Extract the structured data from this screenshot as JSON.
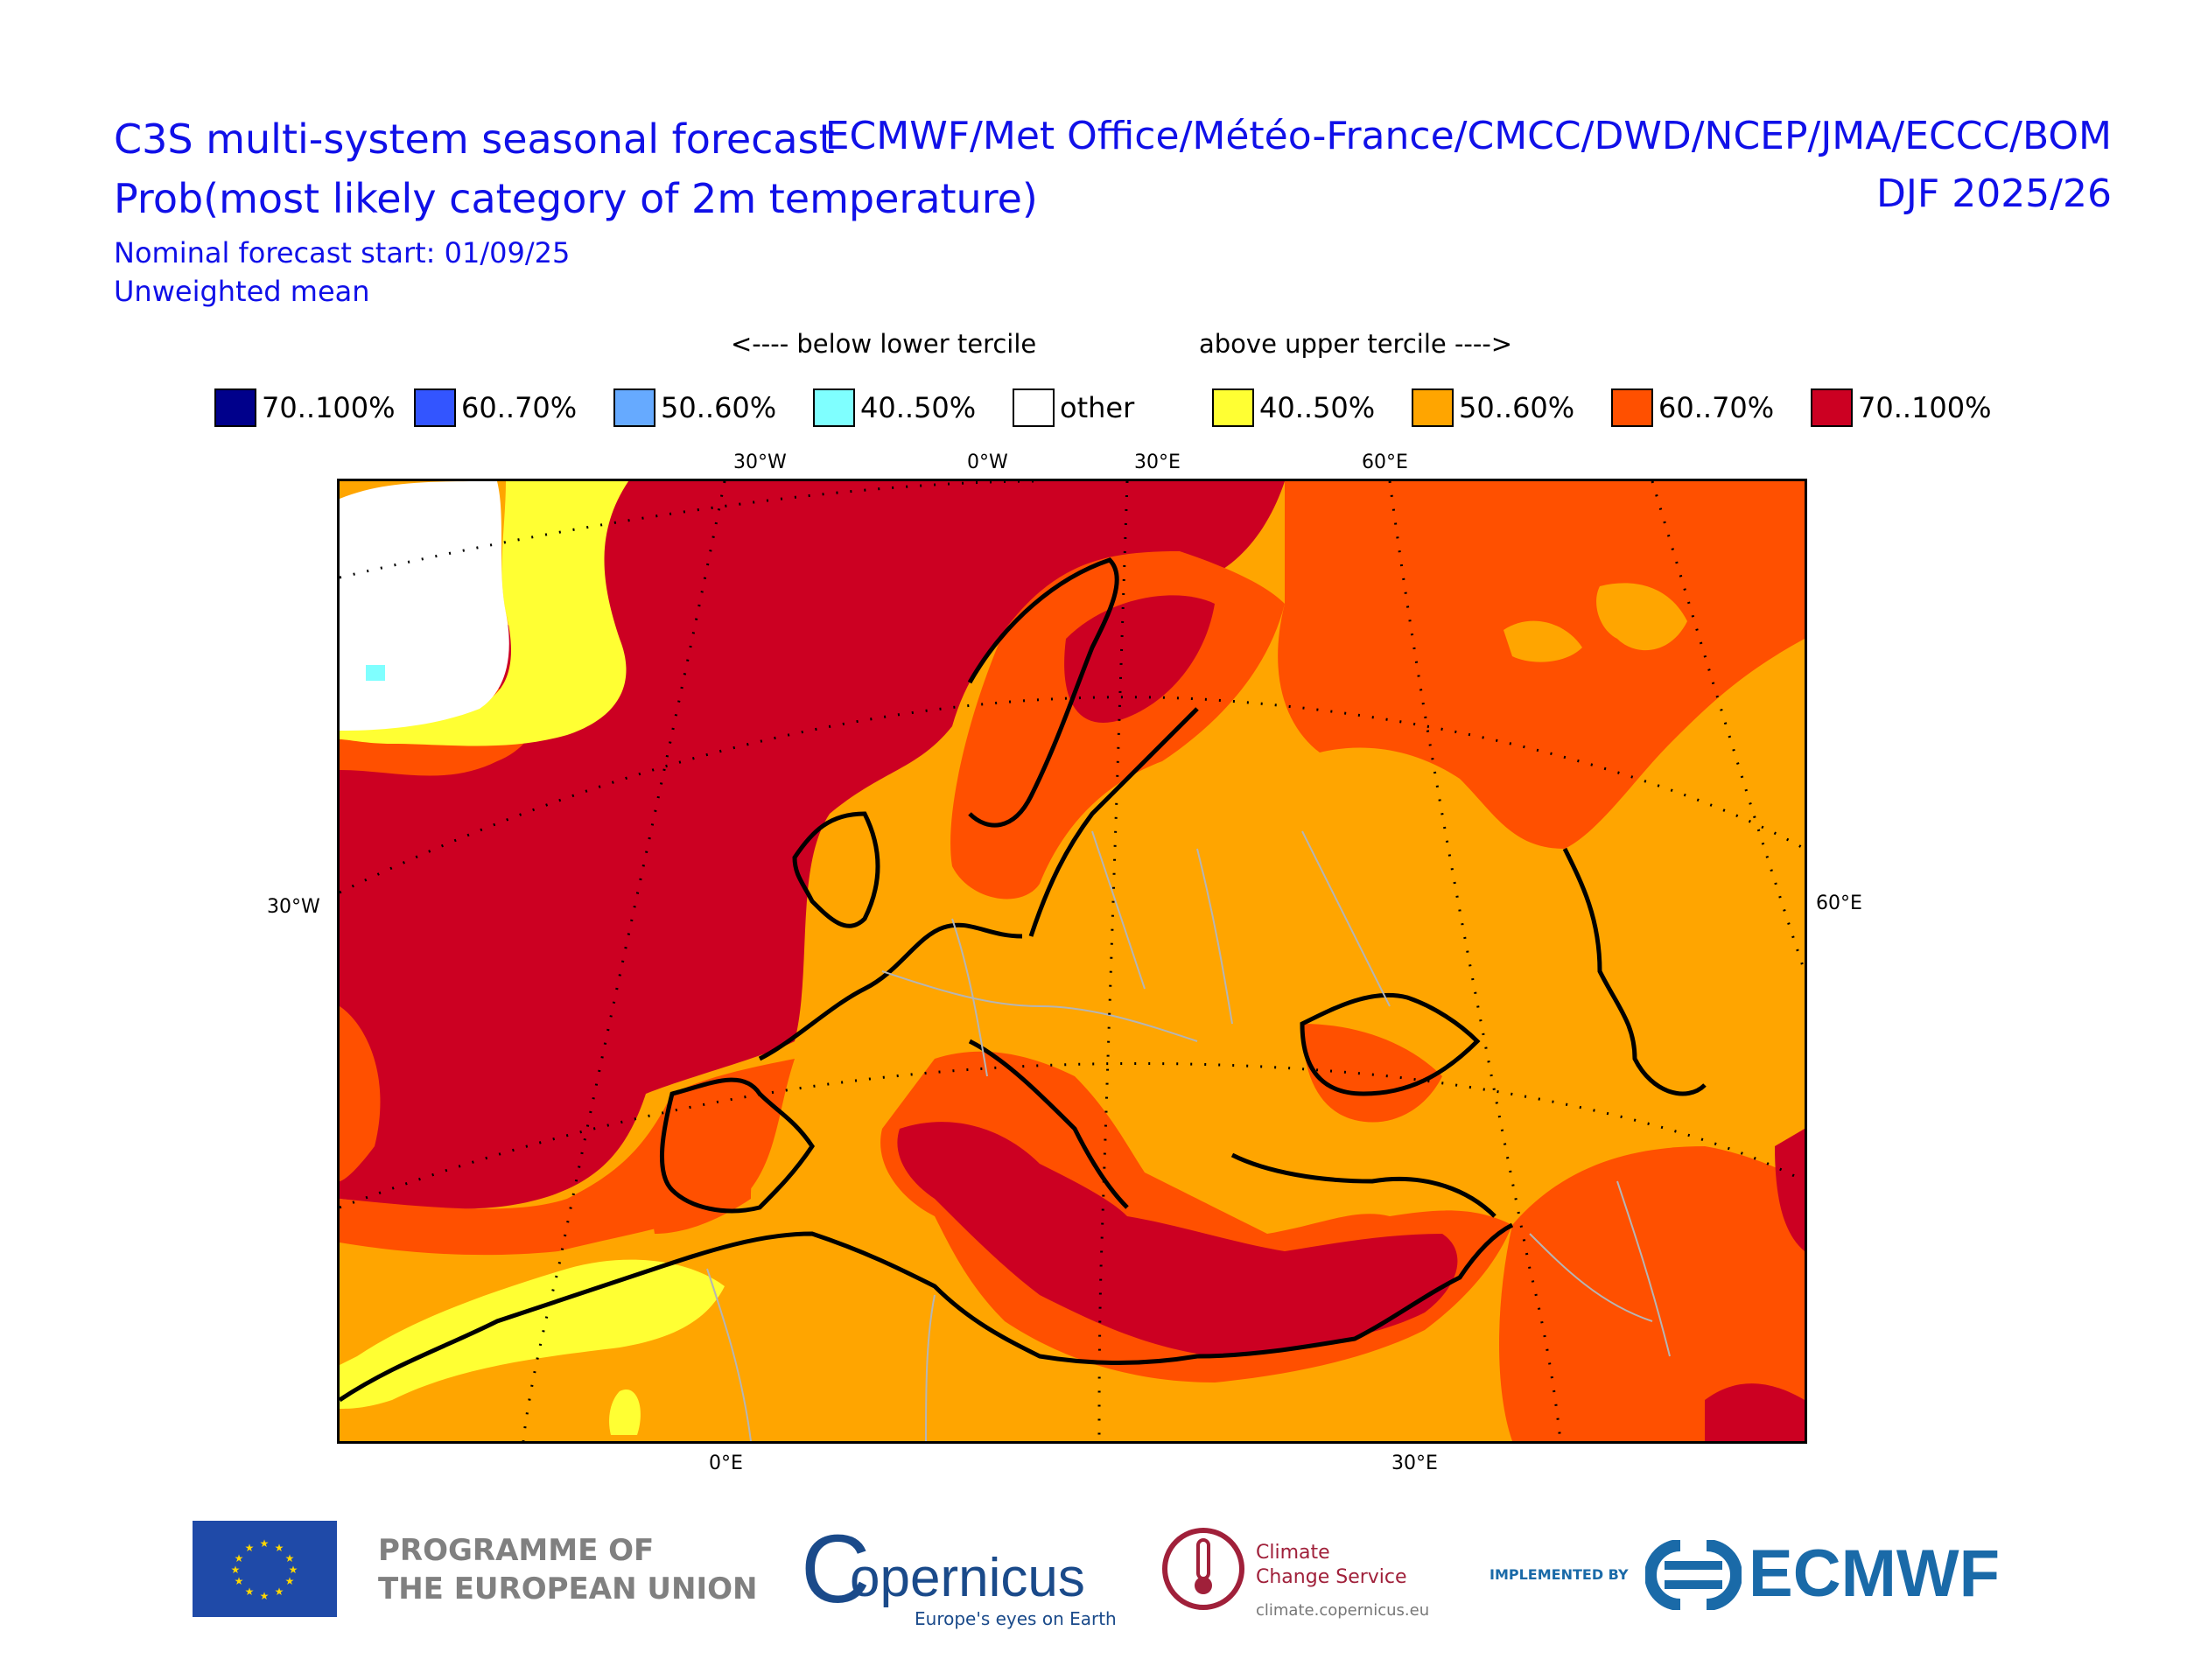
{
  "header": {
    "title": "C3S multi-system seasonal forecast",
    "subtitle": "Prob(most likely category of 2m temperature)",
    "forecast_start": "Nominal forecast start: 01/09/25",
    "mean_type": "Unweighted mean",
    "models": "ECMWF/Met Office/Météo-France/CMCC/DWD/NCEP/JMA/ECCC/BOM",
    "season": "DJF 2025/26"
  },
  "legend": {
    "below_label": "<---- below lower tercile",
    "above_label": "above upper tercile ---->",
    "items": [
      {
        "label": "70..100%",
        "color": "#00008b"
      },
      {
        "label": "60..70%",
        "color": "#3355ff"
      },
      {
        "label": "50..60%",
        "color": "#66aaff"
      },
      {
        "label": "40..50%",
        "color": "#7fffff"
      },
      {
        "label": "other",
        "color": "#ffffff"
      },
      {
        "label": "40..50%",
        "color": "#ffff33"
      },
      {
        "label": "50..60%",
        "color": "#ffa500"
      },
      {
        "label": "60..70%",
        "color": "#ff5000"
      },
      {
        "label": "70..100%",
        "color": "#cc0022"
      }
    ]
  },
  "map": {
    "top_labels": [
      "30°W",
      "0°W",
      "30°E",
      "60°E"
    ],
    "left_label": "30°W",
    "right_label": "60°E",
    "bottom_labels": [
      "0°E",
      "30°E"
    ]
  },
  "footer": {
    "eu_line1": "PROGRAMME OF",
    "eu_line2": "THE EUROPEAN UNION",
    "copernicus": "opernicus",
    "copernicus_c": "C",
    "copernicus_tagline": "Europe's eyes on Earth",
    "c3s_line1": "Climate",
    "c3s_line2": "Change Service",
    "c3s_url": "climate.copernicus.eu",
    "implemented_by": "IMPLEMENTED BY",
    "ecmwf": "ECMWF"
  }
}
